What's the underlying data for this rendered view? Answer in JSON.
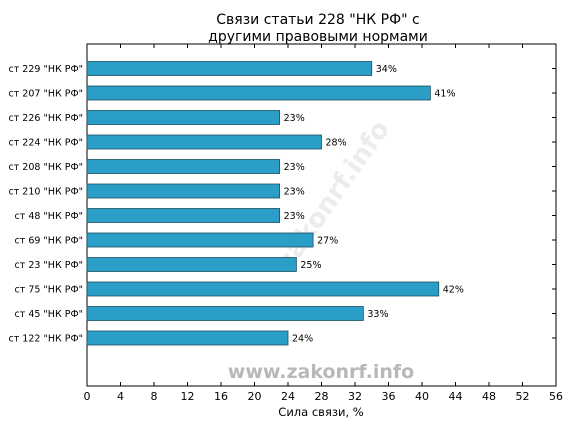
{
  "chart_data": {
    "type": "bar",
    "orientation": "horizontal",
    "title_lines": [
      "Связи статьи 228 \"НК РФ\" с",
      "другими правовыми нормами"
    ],
    "xlabel": "Сила связи, %",
    "ylabel": "",
    "xlim": [
      0,
      56
    ],
    "xticks": [
      0,
      4,
      8,
      12,
      16,
      20,
      24,
      28,
      32,
      36,
      40,
      44,
      48,
      52,
      56
    ],
    "grid": false,
    "bar_color": "#2a9ec6",
    "bar_edge_color": "#1b4f63",
    "categories": [
      "ст 229 \"НК РФ\"",
      "ст 207 \"НК РФ\"",
      "ст 226 \"НК РФ\"",
      "ст 224 \"НК РФ\"",
      "ст 208 \"НК РФ\"",
      "ст 210 \"НК РФ\"",
      "ст 48 \"НК РФ\"",
      "ст 69 \"НК РФ\"",
      "ст 23 \"НК РФ\"",
      "ст 75 \"НК РФ\"",
      "ст 45 \"НК РФ\"",
      "ст 122 \"НК РФ\""
    ],
    "values": [
      34,
      41,
      23,
      28,
      23,
      23,
      23,
      27,
      25,
      42,
      33,
      24
    ],
    "value_labels": [
      "34%",
      "41%",
      "23%",
      "28%",
      "23%",
      "23%",
      "23%",
      "27%",
      "25%",
      "42%",
      "33%",
      "24%"
    ]
  },
  "watermark": "www.zakonrf.info",
  "watermark_faint": "zakonrf.info"
}
